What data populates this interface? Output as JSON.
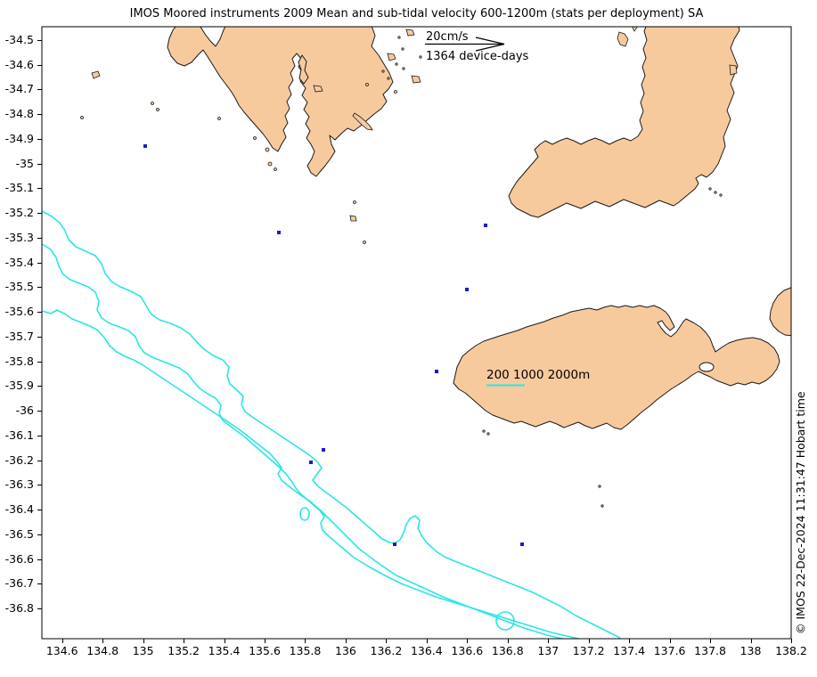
{
  "title": "IMOS Moored instruments 2009 Mean and sub-tidal velocity 600-1200m (stats per deployment) SA",
  "legend": {
    "scale_label": "20cm/s",
    "device_days_label": "1364 device-days",
    "arrow_icon": "right-arrow"
  },
  "map": {
    "contour_label": "200 1000 2000m"
  },
  "watermark": "© IMOS 22-Dec-2024 11:31:47 Hobart time",
  "axes": {
    "x_ticks": [
      "134.6",
      "134.8",
      "135",
      "135.2",
      "135.4",
      "135.6",
      "135.8",
      "136",
      "136.2",
      "136.4",
      "136.6",
      "136.8",
      "137",
      "137.2",
      "137.4",
      "137.6",
      "137.8",
      "138",
      "138.2"
    ],
    "y_ticks": [
      "-34.5",
      "-34.6",
      "-34.7",
      "-34.8",
      "-34.9",
      "-35",
      "-35.1",
      "-35.2",
      "-35.3",
      "-35.4",
      "-35.5",
      "-35.6",
      "-35.7",
      "-35.8",
      "-35.9",
      "-36",
      "-36.1",
      "-36.2",
      "-36.3",
      "-36.4",
      "-36.5",
      "-36.6",
      "-36.7",
      "-36.8"
    ]
  },
  "chart_data": {
    "type": "scatter",
    "title": "IMOS Moored instruments 2009 Mean and sub-tidal velocity 600-1200m (stats per deployment) SA",
    "xlabel": "",
    "ylabel": "",
    "xlim": [
      134.5,
      138.2
    ],
    "ylim": [
      -36.92,
      -34.45
    ],
    "grid": false,
    "scale_arrow_cm_per_s": 20,
    "device_days": 1364,
    "contour_levels_m": [
      200,
      1000,
      2000
    ],
    "points": [
      {
        "lon": 135.01,
        "lat": -34.93
      },
      {
        "lon": 135.67,
        "lat": -35.28
      },
      {
        "lon": 136.69,
        "lat": -35.25
      },
      {
        "lon": 136.6,
        "lat": -35.51
      },
      {
        "lon": 136.45,
        "lat": -35.84
      },
      {
        "lon": 135.89,
        "lat": -36.16
      },
      {
        "lon": 135.83,
        "lat": -36.21
      },
      {
        "lon": 136.24,
        "lat": -36.54
      },
      {
        "lon": 136.87,
        "lat": -36.54
      }
    ]
  },
  "colors": {
    "land": "#f7ca9e",
    "coast": "#1a1a1a",
    "contour": "#2ae6e6",
    "instrument": "#1a1acf",
    "background": "#ffffff"
  }
}
